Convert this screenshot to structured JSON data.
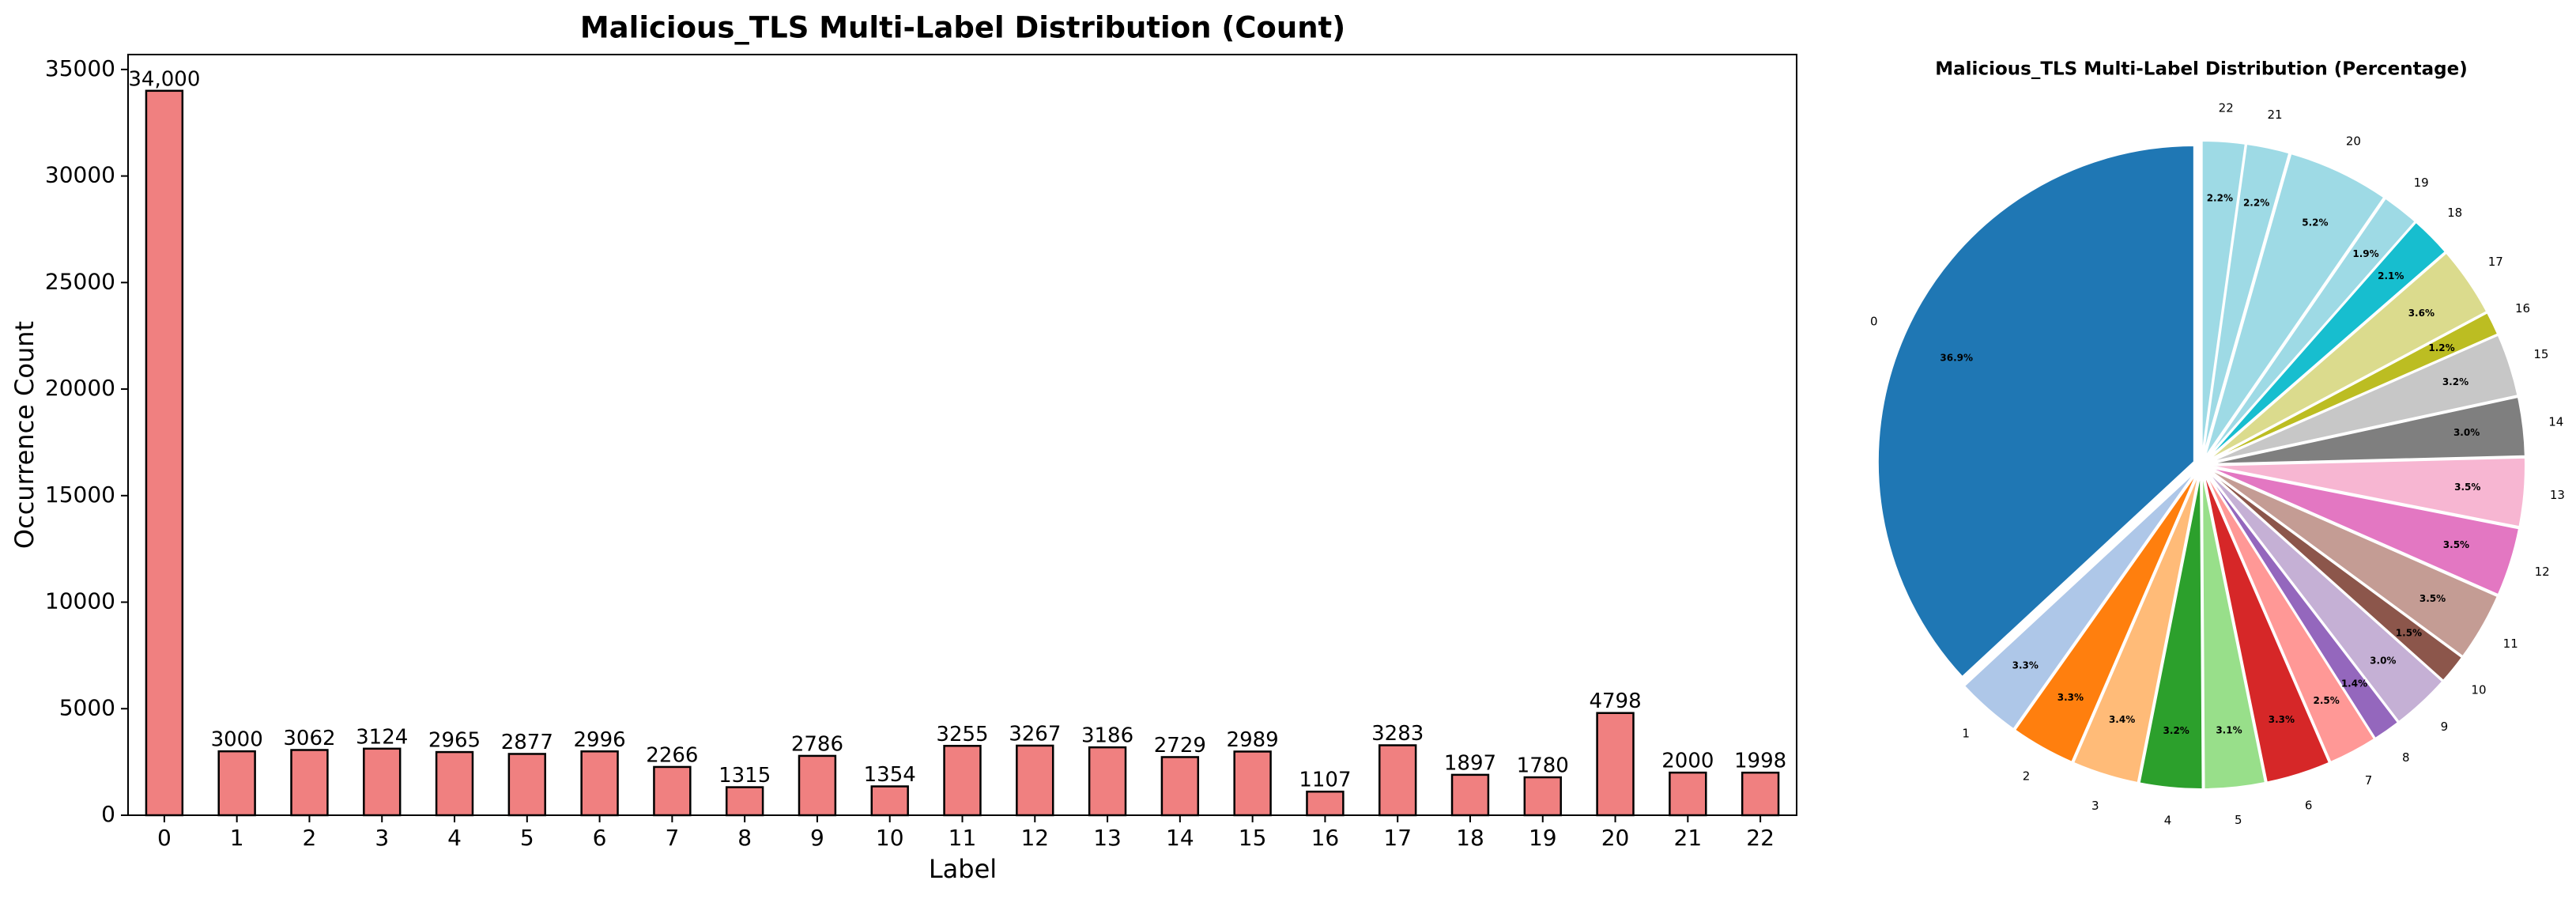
{
  "chart_data": [
    {
      "type": "bar",
      "title": "Malicious_TLS Multi-Label Distribution (Count)",
      "x_label": "Label",
      "y_label": "Occurrence Count",
      "categories": [
        "0",
        "1",
        "2",
        "3",
        "4",
        "5",
        "6",
        "7",
        "8",
        "9",
        "10",
        "11",
        "12",
        "13",
        "14",
        "15",
        "16",
        "17",
        "18",
        "19",
        "20",
        "21",
        "22"
      ],
      "values": [
        34000,
        3000,
        3062,
        3124,
        2965,
        2877,
        2996,
        2266,
        1315,
        2786,
        1354,
        3255,
        3267,
        3186,
        2729,
        2989,
        1107,
        3283,
        1897,
        1780,
        4798,
        2000,
        1998
      ],
      "value_labels": [
        "34,000",
        "3000",
        "3062",
        "3124",
        "2965",
        "2877",
        "2996",
        "2266",
        "1315",
        "2786",
        "1354",
        "3255",
        "3267",
        "3186",
        "2729",
        "2989",
        "1107",
        "3283",
        "1897",
        "1780",
        "4798",
        "2000",
        "1998"
      ],
      "color": "#f08080",
      "ylim": [
        0,
        35700
      ],
      "yticks": [
        0,
        5000,
        10000,
        15000,
        20000,
        25000,
        30000,
        35000
      ],
      "grid": false
    },
    {
      "type": "pie",
      "title": "Malicious_TLS Multi-Label Distribution (Percentage)",
      "categories": [
        "0",
        "1",
        "2",
        "3",
        "4",
        "5",
        "6",
        "7",
        "8",
        "9",
        "10",
        "11",
        "12",
        "13",
        "14",
        "15",
        "16",
        "17",
        "18",
        "19",
        "20",
        "21",
        "22"
      ],
      "values": [
        36.9,
        3.3,
        3.3,
        3.4,
        3.2,
        3.1,
        3.3,
        2.5,
        1.4,
        3.0,
        1.5,
        3.5,
        3.5,
        3.5,
        3.0,
        3.2,
        1.2,
        3.6,
        2.1,
        1.9,
        5.2,
        2.2,
        2.2
      ],
      "value_labels": [
        "36.9%",
        "3.3%",
        "3.3%",
        "3.4%",
        "3.2%",
        "3.1%",
        "3.3%",
        "2.5%",
        "1.4%",
        "3.0%",
        "1.5%",
        "3.5%",
        "3.5%",
        "3.5%",
        "3.0%",
        "3.2%",
        "1.2%",
        "3.6%",
        "2.1%",
        "1.9%",
        "5.2%",
        "2.2%",
        "2.2%"
      ],
      "colors": [
        "#1f77b4",
        "#aec7e8",
        "#ff7f0e",
        "#ffbb78",
        "#2ca02c",
        "#98df8a",
        "#d62728",
        "#ff9896",
        "#9467bd",
        "#c5b0d5",
        "#8c564b",
        "#c49c94",
        "#e377c2",
        "#f7b6d2",
        "#7f7f7f",
        "#c7c7c7",
        "#bcbd22",
        "#dbdb8d",
        "#17becf",
        "#9edae5",
        "#9edae5",
        "#9edae5",
        "#9edae5"
      ]
    }
  ]
}
